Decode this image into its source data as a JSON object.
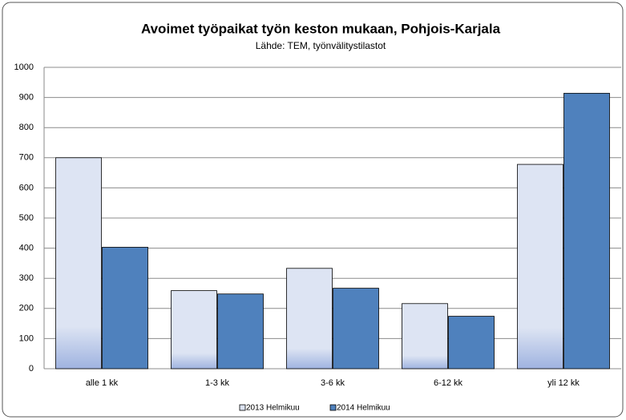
{
  "chart_data": {
    "type": "bar",
    "title": "Avoimet työpaikat työn keston mukaan, Pohjois-Karjala",
    "subtitle": "Lähde: TEM, työnvälitystilastot",
    "categories": [
      "alle 1 kk",
      "1-3 kk",
      "3-6 kk",
      "6-12 kk",
      "yli 12 kk"
    ],
    "series": [
      {
        "name": "2013 Helmikuu",
        "color": "#dde4f3",
        "values": [
          700,
          259,
          333,
          216,
          678
        ]
      },
      {
        "name": "2014 Helmikuu",
        "color": "#4f81bd",
        "values": [
          403,
          248,
          267,
          174,
          914
        ]
      }
    ],
    "ylim": [
      0,
      1000
    ],
    "yticks": [
      0,
      100,
      200,
      300,
      400,
      500,
      600,
      700,
      800,
      900,
      1000
    ],
    "grid": true,
    "legend": "bottom"
  }
}
